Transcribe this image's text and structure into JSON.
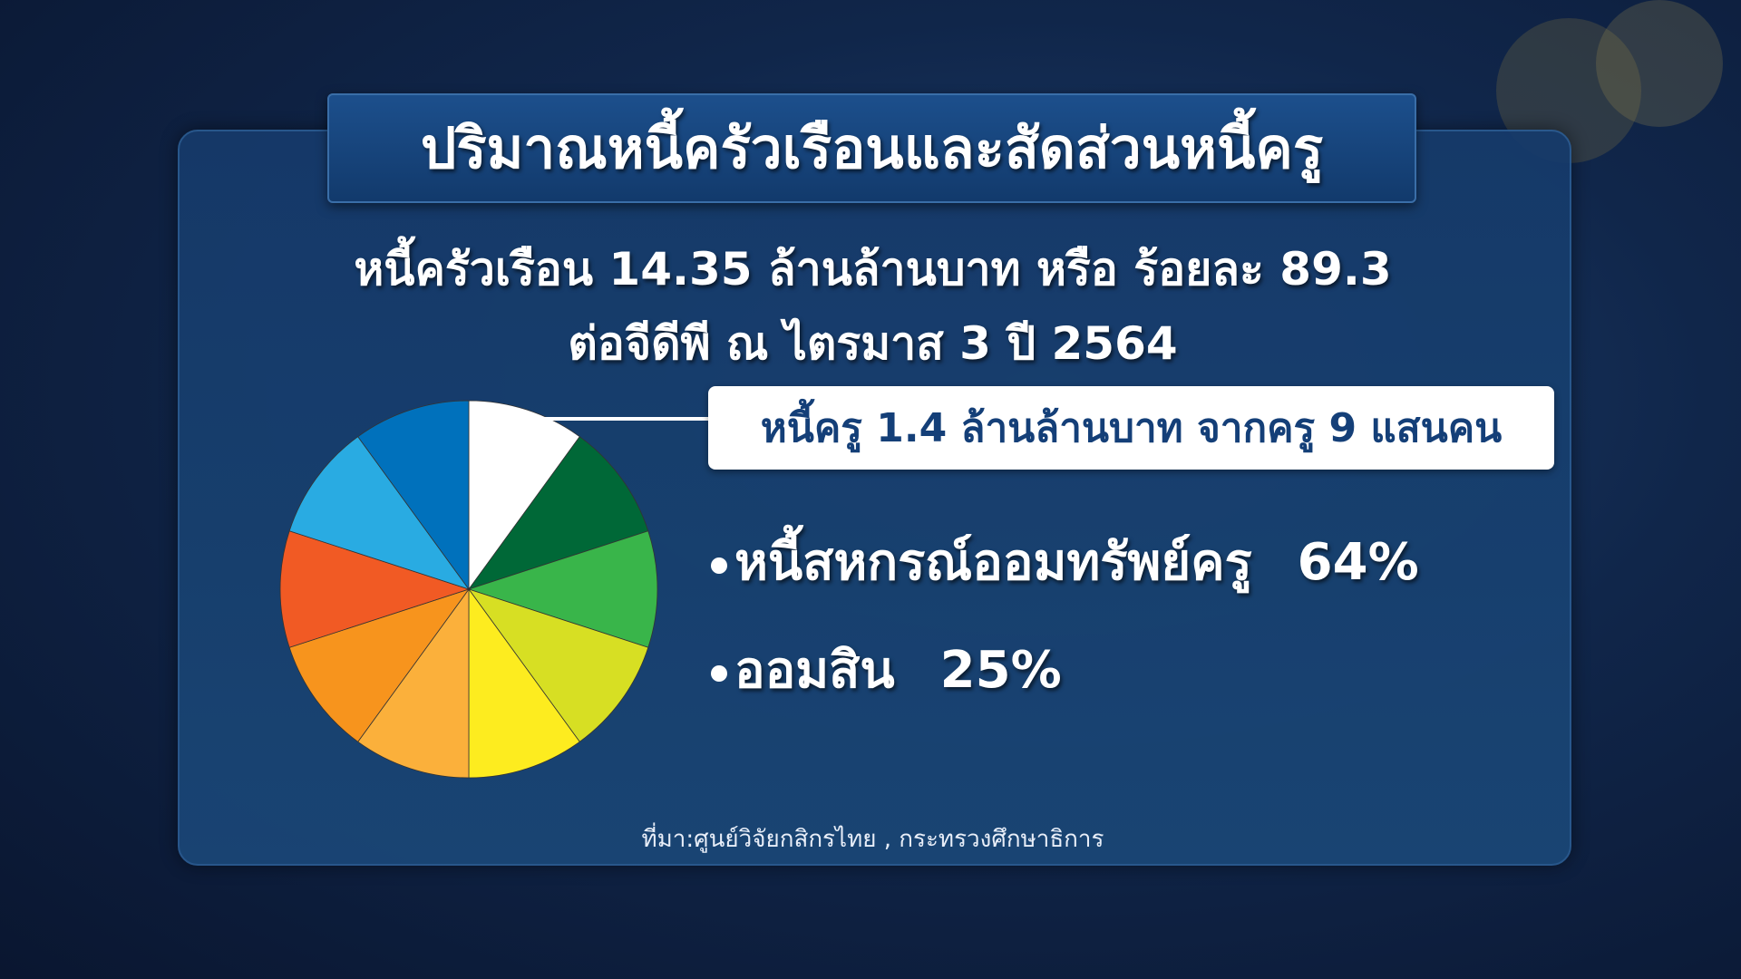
{
  "title": "ปริมาณหนี้ครัวเรือนและสัดส่วนหนี้ครู",
  "subtitle_line1": "หนี้ครัวเรือน 14.35 ล้านล้านบาท หรือ ร้อยละ 89.3",
  "subtitle_line2": "ต่อจีดีพี ณ ไตรมาส 3 ปี 2564",
  "callout": "หนี้ครู 1.4 ล้านล้านบาท จากครู 9 แสนคน",
  "bullets": [
    {
      "label": "หนี้สหกรณ์ออมทรัพย์ครู",
      "value": "64%"
    },
    {
      "label": "ออมสิน",
      "value": "25%"
    }
  ],
  "source": "ที่มา:ศูนย์วิจัยกสิกรไทย , กระทรวงศึกษาธิการ",
  "chart_data": {
    "type": "pie",
    "values": [
      1,
      1,
      1,
      1,
      1,
      1,
      1,
      1,
      1,
      1
    ],
    "colors": [
      "#ffffff",
      "#006837",
      "#39b54a",
      "#d7df23",
      "#fdec1f",
      "#fbb03b",
      "#f7941d",
      "#f15a24",
      "#29abe2",
      "#0071bc"
    ],
    "start": "top, clockwise",
    "highlighted_slice": 0
  }
}
